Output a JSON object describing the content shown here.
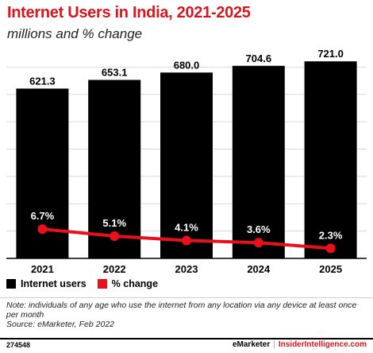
{
  "header": {
    "title": "Internet Users in India, 2021-2025",
    "subtitle": "millions and % change"
  },
  "chart_data": {
    "type": "bar",
    "title": "Internet Users in India, 2021-2025",
    "subtitle": "millions and % change",
    "categories": [
      "2021",
      "2022",
      "2023",
      "2024",
      "2025"
    ],
    "series": [
      {
        "name": "Internet users",
        "type": "bar",
        "values": [
          621.3,
          653.1,
          680.0,
          704.6,
          721.0
        ],
        "labels": [
          "621.3",
          "653.1",
          "680.0",
          "704.6",
          "721.0"
        ],
        "color": "#000000"
      },
      {
        "name": "% change",
        "type": "line",
        "values": [
          6.7,
          5.1,
          4.1,
          3.6,
          2.3
        ],
        "labels": [
          "6.7%",
          "5.1%",
          "4.1%",
          "3.6%",
          "2.3%"
        ],
        "color": "#e8101b"
      }
    ],
    "bar_ylim": [
      0,
      800
    ],
    "line_ylim": [
      0,
      50
    ],
    "grid": true
  },
  "legend": {
    "items": [
      {
        "label": "Internet users",
        "color": "#000000"
      },
      {
        "label": "% change",
        "color": "#e8101b"
      }
    ]
  },
  "note": {
    "text": "Note: individuals of any age who use the internet from any location via any device at least once per month",
    "source": "Source: eMarketer, Feb 2022"
  },
  "footer": {
    "id": "274548",
    "brand_left": "eMarketer",
    "separator": "|",
    "brand_right": "InsiderIntelligence.com"
  },
  "colors": {
    "title_red": "#d7171f",
    "grid": "#d9d9d9",
    "axis": "#000000"
  }
}
